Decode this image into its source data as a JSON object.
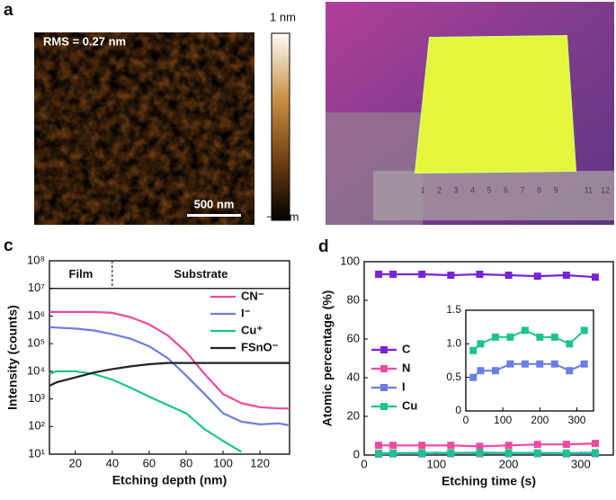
{
  "panels": {
    "a": {
      "label": "a",
      "annotation": "RMS = 0.27 nm",
      "colorbar_max": "1 nm",
      "colorbar_min": "−1 nm",
      "scale_bar": "500 nm"
    },
    "b": {
      "label": "b",
      "ruler_labels": [
        "1",
        "2",
        "3",
        "4",
        "5",
        "6",
        "7",
        "8",
        "9",
        "11",
        "12"
      ]
    }
  },
  "chart_data": [
    {
      "type": "line",
      "label": "c",
      "x_label": "Etching depth (nm)",
      "y_label": "Intensity (counts)",
      "log_y": true,
      "xlim": [
        6,
        136
      ],
      "ylim": [
        10,
        100000000
      ],
      "xticks": [
        20,
        40,
        60,
        80,
        100,
        120
      ],
      "yticks": [
        {
          "value": 10,
          "label": "10¹"
        },
        {
          "value": 100,
          "label": "10²"
        },
        {
          "value": 1000,
          "label": "10³"
        },
        {
          "value": 10000,
          "label": "10⁴"
        },
        {
          "value": 100000,
          "label": "10⁵"
        },
        {
          "value": 1000000,
          "label": "10⁶"
        },
        {
          "value": 10000000,
          "label": "10⁷"
        },
        {
          "value": 100000000,
          "label": "10⁸"
        }
      ],
      "band": {
        "bottom": 10000000,
        "divider_x": 40,
        "left_text": "Film",
        "right_text": "Substrate"
      },
      "legend": "right",
      "x": [
        6,
        10,
        20,
        30,
        40,
        50,
        60,
        70,
        80,
        90,
        100,
        110,
        120,
        130,
        136
      ],
      "series": [
        {
          "name": "CN⁻",
          "color": "#ec4a9c",
          "values": [
            1400000,
            1400000,
            1400000,
            1400000,
            1300000,
            900000,
            500000,
            200000,
            50000,
            8000,
            1500,
            700,
            500,
            450,
            450
          ]
        },
        {
          "name": "I⁻",
          "color": "#6a7ee2",
          "values": [
            400000,
            380000,
            350000,
            300000,
            220000,
            150000,
            80000,
            30000,
            7000,
            1500,
            300,
            150,
            120,
            130,
            110
          ]
        },
        {
          "name": "Cu⁺",
          "color": "#1dc48a",
          "values": [
            8000,
            10000,
            10000,
            8000,
            5000,
            2500,
            1200,
            600,
            300,
            80,
            30,
            12,
            null,
            null,
            null
          ]
        },
        {
          "name": "FSnO⁻",
          "color": "#222222",
          "values": [
            3000,
            4000,
            6000,
            9000,
            12000,
            15000,
            18000,
            20000,
            20000,
            20000,
            20000,
            20000,
            20000,
            20000,
            20000
          ]
        }
      ]
    },
    {
      "type": "line",
      "label": "d",
      "x_label": "Etching time (s)",
      "y_label": "Atomic percentage (%)",
      "markers": true,
      "xlim": [
        0,
        345
      ],
      "ylim": [
        0,
        100
      ],
      "xticks": [
        0,
        100,
        200,
        300
      ],
      "yticks": [
        0,
        20,
        40,
        60,
        80,
        100
      ],
      "legend": "left",
      "x": [
        20,
        40,
        80,
        120,
        160,
        200,
        240,
        280,
        320
      ],
      "series": [
        {
          "name": "C",
          "color": "#7a22d8",
          "values": [
            93.5,
            93.5,
            93.5,
            93,
            93.5,
            93,
            92.5,
            93,
            92
          ]
        },
        {
          "name": "N",
          "color": "#ee4aa0",
          "values": [
            5,
            5,
            5,
            5,
            4.5,
            5,
            5.5,
            5.5,
            6
          ]
        },
        {
          "name": "I",
          "color": "#6a7ee2",
          "values": [
            0.5,
            0.6,
            0.6,
            0.7,
            0.7,
            0.7,
            0.7,
            0.6,
            0.7
          ]
        },
        {
          "name": "Cu",
          "color": "#1dc48a",
          "values": [
            0.9,
            1.0,
            1.1,
            1.1,
            1.2,
            1.1,
            1.1,
            1.0,
            1.2
          ]
        }
      ],
      "inset": {
        "xlim": [
          0,
          345
        ],
        "ylim": [
          0,
          1.5
        ],
        "xticks": [
          0,
          100,
          200,
          300
        ],
        "yticks": [
          0,
          0.5,
          {
            "value": 1,
            "label": "1.0"
          },
          1.5
        ]
      }
    }
  ]
}
